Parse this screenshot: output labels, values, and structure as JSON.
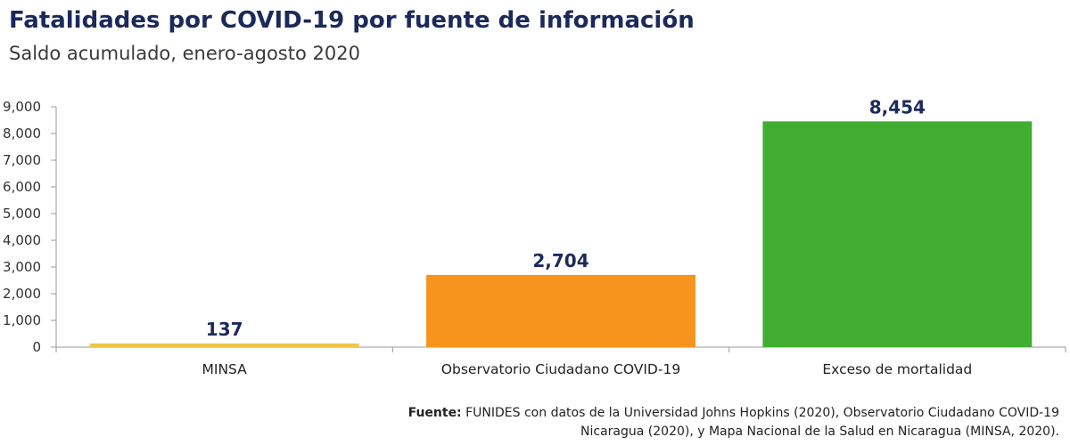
{
  "header": {
    "title": "Fatalidades por COVID-19 por fuente de información",
    "subtitle": "Saldo acumulado, enero-agosto 2020"
  },
  "chart_data": {
    "type": "bar",
    "categories": [
      "MINSA",
      "Observatorio Ciudadano COVID-19",
      "Exceso de mortalidad"
    ],
    "values": [
      137,
      2704,
      8454
    ],
    "data_labels": [
      "137",
      "2,704",
      "8,454"
    ],
    "colors": [
      "#f2c447",
      "#f7941d",
      "#41ad31"
    ],
    "ylim": [
      0,
      9000
    ],
    "yticks": [
      0,
      1000,
      2000,
      3000,
      4000,
      5000,
      6000,
      7000,
      8000,
      9000
    ],
    "ytick_labels": [
      "0",
      "1,000",
      "2,000",
      "3,000",
      "4,000",
      "5,000",
      "6,000",
      "7,000",
      "8,000",
      "9,000"
    ],
    "grid": false,
    "legend": "none"
  },
  "source": {
    "prefix": "Fuente:",
    "line1": "FUNIDES con datos de la Universidad Johns Hopkins (2020), Observatorio Ciudadano COVID-19",
    "line2": "Nicaragua (2020), y Mapa Nacional de la Salud en Nicaragua (MINSA, 2020)."
  },
  "colors": {
    "title": "#1b2a5a",
    "axis": "#9a9a9a"
  }
}
